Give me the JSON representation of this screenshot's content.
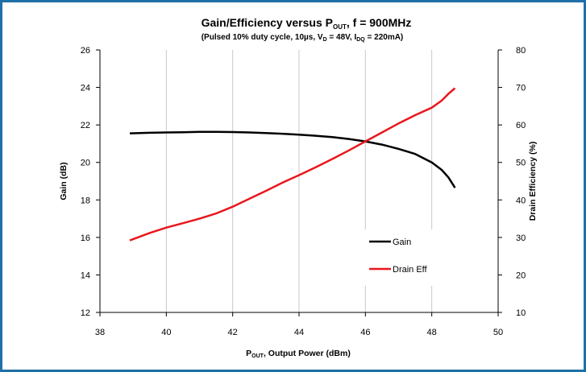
{
  "chart_data": {
    "type": "line",
    "title_main": "Gain/Efficiency versus P",
    "title_sub": "OUT",
    "title_tail": ", f = 900MHz",
    "subtitle_parts": [
      "(Pulsed 10% duty cycle, 10µs, V",
      "D",
      " = 48V, I",
      "DQ",
      " = 220mA)"
    ],
    "xlabel_main": "P",
    "xlabel_sub": "OUT",
    "xlabel_tail": ", Output Power (dBm)",
    "ylabel_left": "Gain (dB)",
    "ylabel_right": "Drain Efficiency (%)",
    "xlim": [
      38,
      50
    ],
    "ylim_left": [
      12,
      26
    ],
    "ylim_right": [
      10,
      80
    ],
    "x_ticks": [
      "38",
      "40",
      "42",
      "44",
      "46",
      "48",
      "50"
    ],
    "y_left_ticks": [
      "12",
      "14",
      "16",
      "18",
      "20",
      "22",
      "24",
      "26"
    ],
    "y_right_ticks": [
      "10",
      "20",
      "30",
      "40",
      "50",
      "60",
      "70",
      "80"
    ],
    "grid": "vertical",
    "legend_position": "bottom-right",
    "series": [
      {
        "name": "Gain",
        "axis": "left",
        "color": "#000000",
        "x": [
          38.9,
          39.5,
          40,
          40.5,
          41,
          41.5,
          42,
          42.5,
          43,
          43.5,
          44,
          44.5,
          45,
          45.5,
          46,
          46.5,
          47,
          47.5,
          48,
          48.3,
          48.5,
          48.7
        ],
        "values": [
          21.55,
          21.58,
          21.6,
          21.61,
          21.63,
          21.63,
          21.62,
          21.6,
          21.57,
          21.53,
          21.48,
          21.42,
          21.35,
          21.25,
          21.12,
          20.95,
          20.72,
          20.45,
          20.0,
          19.6,
          19.2,
          18.65
        ]
      },
      {
        "name": "Drain Eff",
        "axis": "right",
        "color": "#e8171d",
        "x": [
          38.9,
          39.5,
          40,
          40.5,
          41,
          41.5,
          42,
          42.5,
          43,
          43.5,
          44,
          44.5,
          45,
          45.5,
          46,
          46.5,
          47,
          47.5,
          48,
          48.3,
          48.5,
          48.7
        ],
        "values": [
          29.2,
          31.2,
          32.6,
          33.8,
          35.0,
          36.4,
          38.2,
          40.3,
          42.4,
          44.6,
          46.6,
          48.7,
          50.9,
          53.2,
          55.6,
          58.0,
          60.4,
          62.6,
          64.6,
          66.5,
          68.3,
          69.8
        ]
      }
    ]
  }
}
